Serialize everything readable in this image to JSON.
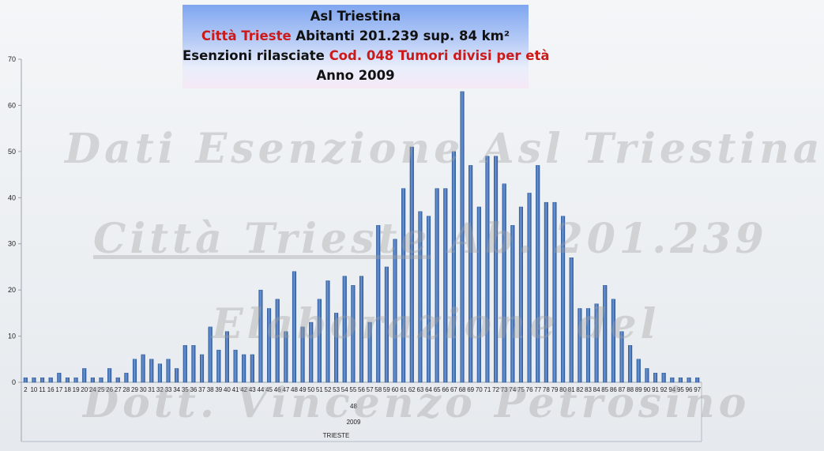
{
  "title": {
    "line1": "Asl Triestina",
    "line2_red": "Città Trieste",
    "line2_rest": " Abitanti 201.239  sup. 84 km²",
    "line3_black": "Esenzioni rilasciate ",
    "line3_red": "Cod. 048 Tumori divisi per età",
    "line4": "Anno 2009"
  },
  "watermark": {
    "line1": "Dati Esenzione Asl Triestina",
    "line2a": "Città Trieste",
    "line2b": " Ab. 201.239",
    "line3": "Elaborazione del",
    "line4": "Dott. Vincenzo Petrosino"
  },
  "colors": {
    "bar": "#3f6fb2",
    "bar_edge": "#1f4c8a",
    "bar_light": "#7da3d9"
  },
  "chart_data": {
    "type": "bar",
    "title": "Asl Triestina — Città Trieste Abitanti 201.239 sup. 84 km² — Esenzioni rilasciate Cod. 048 Tumori divisi per età — Anno 2009",
    "categories": [
      "2",
      "10",
      "11",
      "16",
      "17",
      "18",
      "19",
      "20",
      "24",
      "25",
      "26",
      "27",
      "28",
      "29",
      "30",
      "31",
      "32",
      "33",
      "34",
      "35",
      "36",
      "37",
      "38",
      "39",
      "40",
      "41",
      "42",
      "43",
      "44",
      "45",
      "46",
      "47",
      "48",
      "49",
      "50",
      "51",
      "52",
      "53",
      "54",
      "55",
      "56",
      "57",
      "58",
      "59",
      "60",
      "61",
      "62",
      "63",
      "64",
      "65",
      "66",
      "67",
      "68",
      "69",
      "70",
      "71",
      "72",
      "73",
      "74",
      "75",
      "76",
      "77",
      "78",
      "79",
      "80",
      "81",
      "82",
      "83",
      "84",
      "85",
      "86",
      "87",
      "88",
      "89",
      "90",
      "91",
      "92",
      "94",
      "95",
      "96",
      "97"
    ],
    "values": [
      1,
      1,
      1,
      1,
      2,
      1,
      1,
      3,
      1,
      1,
      3,
      1,
      2,
      5,
      6,
      5,
      4,
      5,
      3,
      8,
      8,
      6,
      12,
      7,
      11,
      7,
      6,
      6,
      20,
      16,
      18,
      11,
      24,
      12,
      13,
      18,
      22,
      15,
      23,
      21,
      23,
      13,
      34,
      25,
      31,
      42,
      51,
      37,
      36,
      42,
      42,
      50,
      63,
      47,
      38,
      49,
      49,
      43,
      34,
      38,
      41,
      47,
      39,
      39,
      36,
      27,
      16,
      16,
      17,
      21,
      18,
      11,
      8,
      5,
      3,
      2,
      2,
      1,
      1,
      1,
      1
    ],
    "ylim": [
      0,
      70
    ],
    "yticks": [
      0,
      10,
      20,
      30,
      40,
      50,
      60,
      70
    ],
    "x_group_labels": [
      "48",
      "2009",
      "TRIESTE"
    ],
    "grid": false,
    "legend": "none"
  }
}
